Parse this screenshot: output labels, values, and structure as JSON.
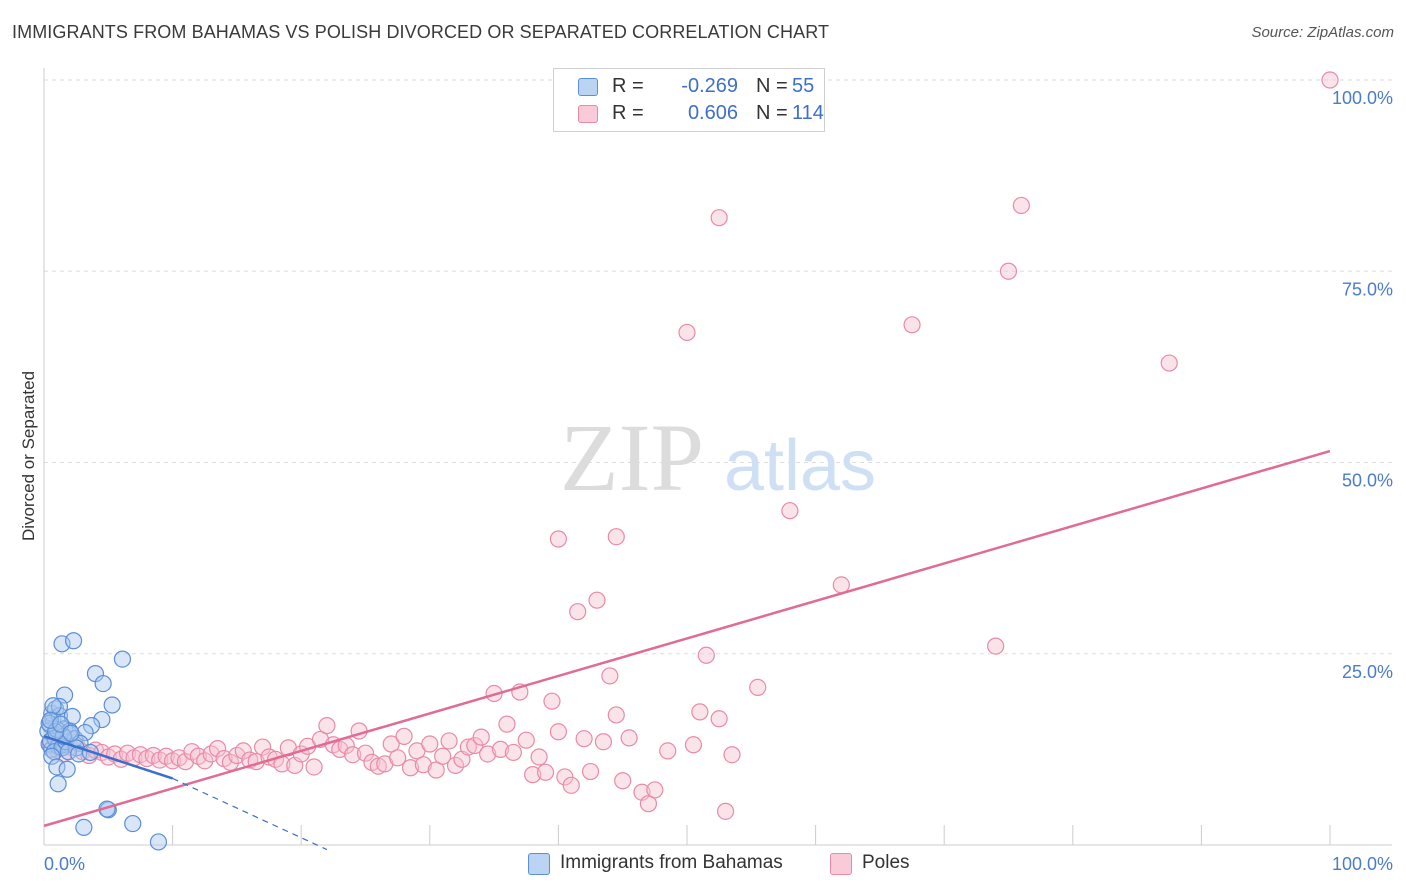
{
  "header": {
    "title": "IMMIGRANTS FROM BAHAMAS VS POLISH DIVORCED OR SEPARATED CORRELATION CHART",
    "source": "Source: ZipAtlas.com"
  },
  "watermark": {
    "zip": "ZIP",
    "atlas": "atlas"
  },
  "colors": {
    "blue_fill": "#a9c8f0",
    "blue_stroke": "#5b8ed6",
    "blue_line": "#3a6fcc",
    "pink_fill": "#f7c1d1",
    "pink_stroke": "#e88aa8",
    "pink_line": "#e06b96",
    "value_text": "#3d6fcb"
  },
  "legend_top": {
    "rows": [
      {
        "r_label": "R =",
        "r_value": "-0.269",
        "n_label": "N =",
        "n_value": "55"
      },
      {
        "r_label": "R =",
        "r_value": "0.606",
        "n_label": "N =",
        "n_value": "114"
      }
    ]
  },
  "legend_bottom": {
    "items": [
      {
        "label": "Immigrants from Bahamas"
      },
      {
        "label": "Poles"
      }
    ]
  },
  "chart_data": {
    "type": "scatter",
    "title": "IMMIGRANTS FROM BAHAMAS VS POLISH DIVORCED OR SEPARATED CORRELATION CHART",
    "xlabel": "",
    "ylabel": "Divorced or Separated",
    "xlim": [
      0,
      100
    ],
    "ylim": [
      0,
      100
    ],
    "x_tick_labels": [
      "0.0%",
      "100.0%"
    ],
    "y_ticks": [
      25,
      50,
      75,
      100
    ],
    "y_tick_labels": [
      "25.0%",
      "50.0%",
      "75.0%",
      "100.0%"
    ],
    "grid": "horizontal dashed",
    "legend_position": "top-center",
    "series": [
      {
        "name": "Immigrants from Bahamas",
        "r": -0.269,
        "n": 55,
        "points": [
          [
            0.4,
            13.2
          ],
          [
            0.6,
            12.5
          ],
          [
            0.8,
            14.1
          ],
          [
            0.5,
            15.6
          ],
          [
            0.9,
            13.8
          ],
          [
            1.1,
            12.9
          ],
          [
            0.7,
            16.5
          ],
          [
            1.3,
            14.4
          ],
          [
            1.5,
            13.1
          ],
          [
            0.6,
            17.2
          ],
          [
            0.9,
            17.8
          ],
          [
            1.2,
            16.9
          ],
          [
            1.6,
            15.2
          ],
          [
            1.9,
            14.6
          ],
          [
            2.2,
            16.8
          ],
          [
            0.3,
            14.9
          ],
          [
            0.5,
            13.6
          ],
          [
            0.8,
            12.2
          ],
          [
            1.0,
            15.1
          ],
          [
            1.4,
            12.7
          ],
          [
            1.7,
            13.5
          ],
          [
            2.0,
            14.9
          ],
          [
            2.4,
            13.9
          ],
          [
            0.6,
            11.6
          ],
          [
            1.0,
            10.2
          ],
          [
            1.8,
            9.9
          ],
          [
            1.1,
            8.0
          ],
          [
            1.6,
            19.6
          ],
          [
            1.4,
            26.3
          ],
          [
            2.3,
            26.7
          ],
          [
            4.0,
            22.4
          ],
          [
            4.6,
            21.1
          ],
          [
            6.1,
            24.3
          ],
          [
            5.3,
            18.3
          ],
          [
            4.5,
            16.4
          ],
          [
            3.7,
            15.6
          ],
          [
            3.2,
            14.7
          ],
          [
            2.8,
            13.3
          ],
          [
            0.4,
            15.9
          ],
          [
            1.2,
            18.1
          ],
          [
            0.7,
            18.2
          ],
          [
            2.5,
            12.7
          ],
          [
            1.9,
            12.2
          ],
          [
            1.5,
            14.2
          ],
          [
            0.9,
            14.8
          ],
          [
            0.5,
            16.3
          ],
          [
            1.3,
            15.8
          ],
          [
            2.1,
            14.6
          ],
          [
            3.1,
            2.3
          ],
          [
            5.0,
            4.6
          ],
          [
            4.9,
            4.7
          ],
          [
            6.9,
            2.8
          ],
          [
            8.9,
            0.4
          ],
          [
            2.7,
            11.9
          ],
          [
            3.6,
            12.1
          ]
        ]
      },
      {
        "name": "Poles",
        "r": 0.606,
        "n": 114,
        "points": [
          [
            0.5,
            13.1
          ],
          [
            1.0,
            12.5
          ],
          [
            1.5,
            11.9
          ],
          [
            2.0,
            12.8
          ],
          [
            2.5,
            13.4
          ],
          [
            3.0,
            12.2
          ],
          [
            3.5,
            11.7
          ],
          [
            4.0,
            12.4
          ],
          [
            4.5,
            12.1
          ],
          [
            5.0,
            11.5
          ],
          [
            5.5,
            11.9
          ],
          [
            6.0,
            11.2
          ],
          [
            6.5,
            12.0
          ],
          [
            7.0,
            11.4
          ],
          [
            7.5,
            11.8
          ],
          [
            8.0,
            11.3
          ],
          [
            8.5,
            11.7
          ],
          [
            9.0,
            11.1
          ],
          [
            9.5,
            11.6
          ],
          [
            10.0,
            11.0
          ],
          [
            10.5,
            11.4
          ],
          [
            11.0,
            10.9
          ],
          [
            11.5,
            12.2
          ],
          [
            12.0,
            11.6
          ],
          [
            12.5,
            11.0
          ],
          [
            13.0,
            11.9
          ],
          [
            13.5,
            12.6
          ],
          [
            14.0,
            11.3
          ],
          [
            14.5,
            10.8
          ],
          [
            15.0,
            11.7
          ],
          [
            15.5,
            12.3
          ],
          [
            16.0,
            11.1
          ],
          [
            16.5,
            10.9
          ],
          [
            17.0,
            12.8
          ],
          [
            17.5,
            11.5
          ],
          [
            18.0,
            11.2
          ],
          [
            18.5,
            10.6
          ],
          [
            19.0,
            12.7
          ],
          [
            19.5,
            10.4
          ],
          [
            20.0,
            11.9
          ],
          [
            20.5,
            12.9
          ],
          [
            21.0,
            10.2
          ],
          [
            21.5,
            13.8
          ],
          [
            22.0,
            15.6
          ],
          [
            22.5,
            13.1
          ],
          [
            23.0,
            12.5
          ],
          [
            23.5,
            13.0
          ],
          [
            24.0,
            11.8
          ],
          [
            24.5,
            14.9
          ],
          [
            25.0,
            12.0
          ],
          [
            25.5,
            10.8
          ],
          [
            26.0,
            10.3
          ],
          [
            26.5,
            10.6
          ],
          [
            27.0,
            13.2
          ],
          [
            27.5,
            11.4
          ],
          [
            28.0,
            14.2
          ],
          [
            28.5,
            10.1
          ],
          [
            29.0,
            12.3
          ],
          [
            29.5,
            10.5
          ],
          [
            30.0,
            13.2
          ],
          [
            30.5,
            9.8
          ],
          [
            31.0,
            11.6
          ],
          [
            31.5,
            13.6
          ],
          [
            32.0,
            10.4
          ],
          [
            32.5,
            11.2
          ],
          [
            33.0,
            12.8
          ],
          [
            33.5,
            13.0
          ],
          [
            34.0,
            14.1
          ],
          [
            34.5,
            11.9
          ],
          [
            35.0,
            19.8
          ],
          [
            35.5,
            12.5
          ],
          [
            36.0,
            15.8
          ],
          [
            36.5,
            12.1
          ],
          [
            37.0,
            20.0
          ],
          [
            37.5,
            13.7
          ],
          [
            38.0,
            9.2
          ],
          [
            38.5,
            11.5
          ],
          [
            39.0,
            9.5
          ],
          [
            39.5,
            18.8
          ],
          [
            40.0,
            14.8
          ],
          [
            40.5,
            8.9
          ],
          [
            41.0,
            7.8
          ],
          [
            41.5,
            30.5
          ],
          [
            42.0,
            13.9
          ],
          [
            42.5,
            9.6
          ],
          [
            43.0,
            32.0
          ],
          [
            43.5,
            13.5
          ],
          [
            44.0,
            22.1
          ],
          [
            44.5,
            17.0
          ],
          [
            45.0,
            8.4
          ],
          [
            45.5,
            14.0
          ],
          [
            46.5,
            6.9
          ],
          [
            47.0,
            5.4
          ],
          [
            47.5,
            7.2
          ],
          [
            48.5,
            12.3
          ],
          [
            50.5,
            13.1
          ],
          [
            51.0,
            17.4
          ],
          [
            51.5,
            24.8
          ],
          [
            52.5,
            16.5
          ],
          [
            53.0,
            4.4
          ],
          [
            53.5,
            11.8
          ],
          [
            55.5,
            20.6
          ],
          [
            40.0,
            40.0
          ],
          [
            44.5,
            40.3
          ],
          [
            58.0,
            43.7
          ],
          [
            62.0,
            34.0
          ],
          [
            50.0,
            67.0
          ],
          [
            52.5,
            82.0
          ],
          [
            67.5,
            68.0
          ],
          [
            75.0,
            75.0
          ],
          [
            76.0,
            83.6
          ],
          [
            87.5,
            63.0
          ],
          [
            100.0,
            100.0
          ],
          [
            74.0,
            26.0
          ]
        ]
      }
    ],
    "trendlines": [
      {
        "series": "Immigrants from Bahamas",
        "solid": [
          [
            0.0,
            14.2
          ],
          [
            10.0,
            8.7
          ]
        ],
        "dashed": [
          [
            10.0,
            8.7
          ],
          [
            22.0,
            -0.6
          ]
        ]
      },
      {
        "series": "Poles",
        "solid": [
          [
            0.0,
            2.5
          ],
          [
            100.0,
            51.5
          ]
        ]
      }
    ]
  }
}
